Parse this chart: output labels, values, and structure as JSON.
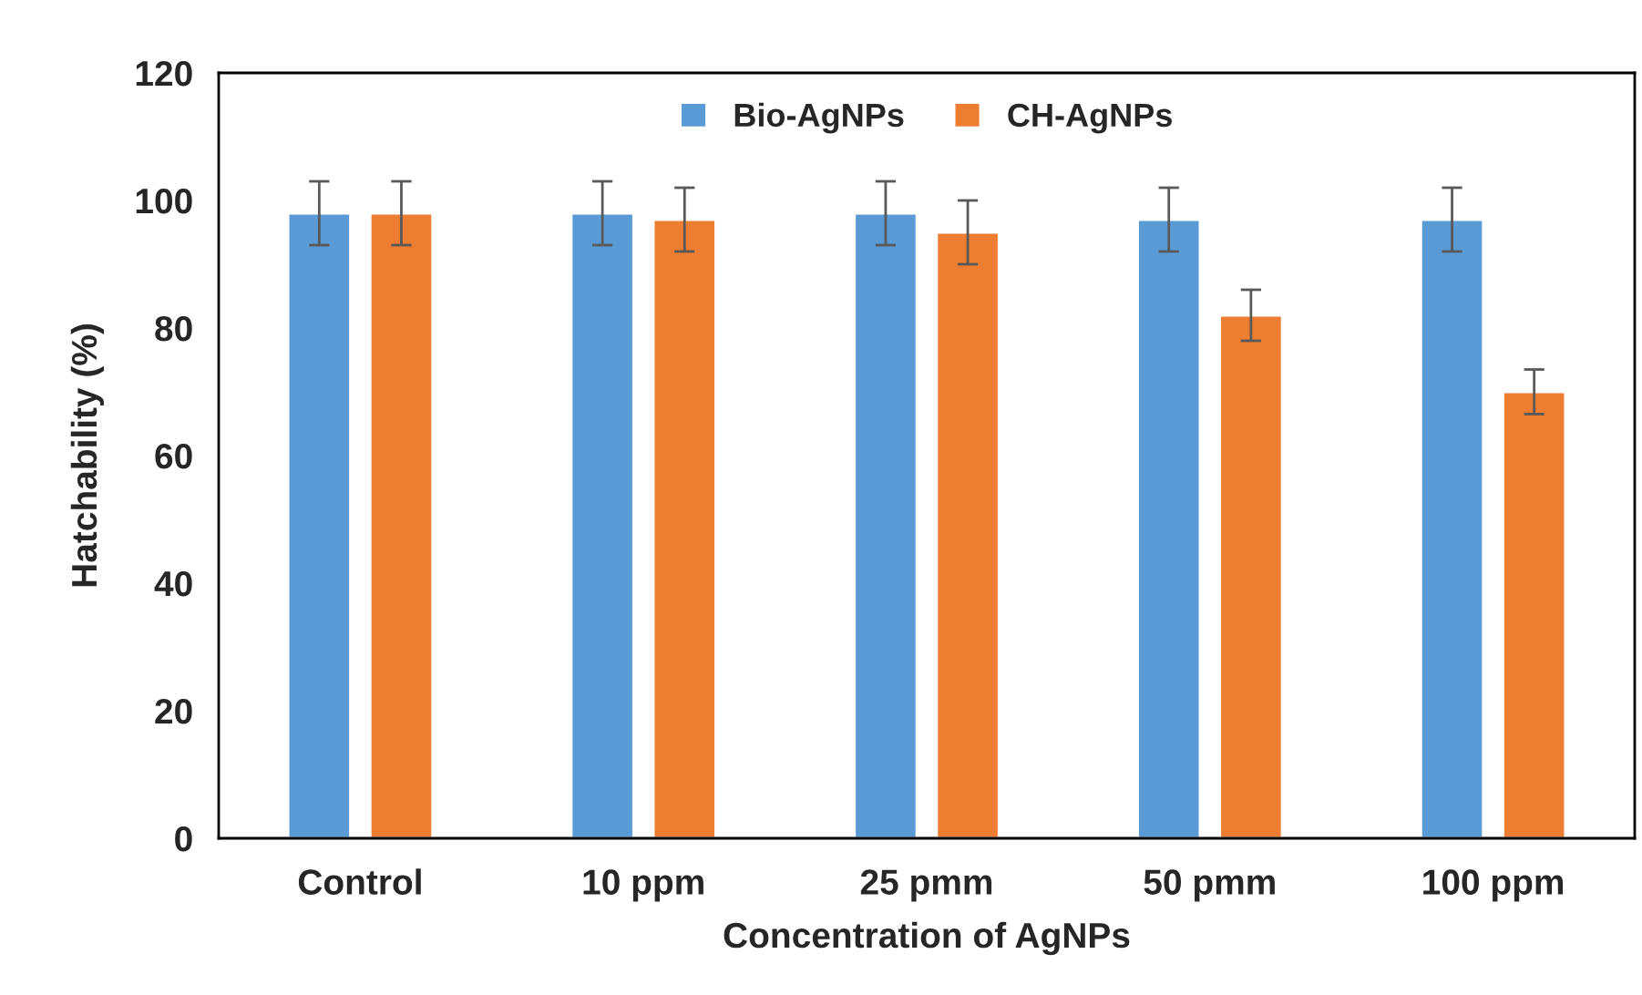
{
  "chart_data": {
    "type": "bar",
    "xlabel": "Concentration of AgNPs",
    "ylabel": "Hatchability (%)",
    "categories": [
      "Control",
      "10 ppm",
      "25 pmm",
      "50 pmm",
      "100 ppm"
    ],
    "series": [
      {
        "name": "Bio-AgNPs",
        "color": "#5b9bd5",
        "values": [
          98,
          98,
          98,
          97,
          97
        ],
        "errors": [
          5,
          5,
          5,
          5,
          5
        ]
      },
      {
        "name": "CH-AgNPs",
        "color": "#ed7d31",
        "values": [
          98,
          97,
          95,
          82,
          70
        ],
        "errors": [
          5,
          5,
          5,
          4,
          3.5
        ]
      }
    ],
    "ylim": [
      0,
      120
    ],
    "yticks": [
      0,
      20,
      40,
      60,
      80,
      100,
      120
    ],
    "grid": false,
    "legend": "top"
  }
}
